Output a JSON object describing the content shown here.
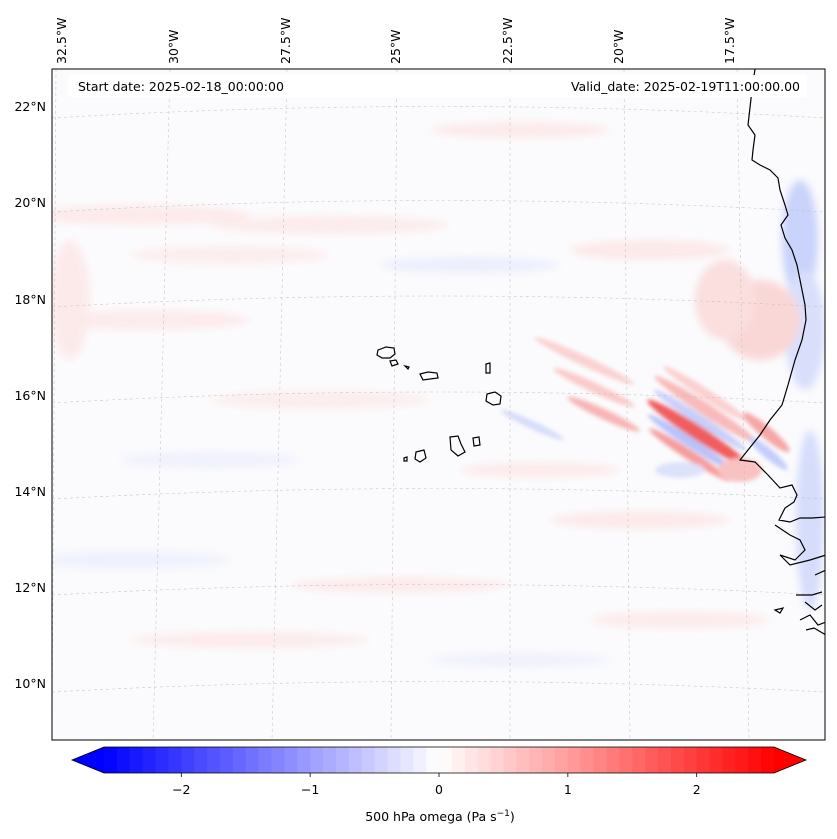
{
  "map": {
    "start_date": "Start date: 2025-02-18_00:00:00",
    "valid_date": "Valid_date: 2025-02-19T11:00:00.00",
    "lon_labels": [
      "32.5°W",
      "30°W",
      "27.5°W",
      "25°W",
      "22.5°W",
      "20°W",
      "17.5°W"
    ],
    "lat_labels": [
      "22°N",
      "20°N",
      "18°N",
      "16°N",
      "14°N",
      "12°N",
      "10°N"
    ],
    "gridlines": true,
    "coastline_color": "#000000"
  },
  "colorbar": {
    "label": "500 hPa omega (Pa s",
    "label_sup": "−1",
    "label_end": ")",
    "ticks": [
      "−2",
      "−1",
      "0",
      "1",
      "2"
    ],
    "tick_values": [
      -2,
      -1,
      0,
      1,
      2
    ],
    "range": [
      -2.6,
      2.6
    ],
    "colormap": "bwr",
    "extend": "both",
    "low_color": "#0000ff",
    "mid_color": "#ffffff",
    "high_color": "#ff0000"
  }
}
